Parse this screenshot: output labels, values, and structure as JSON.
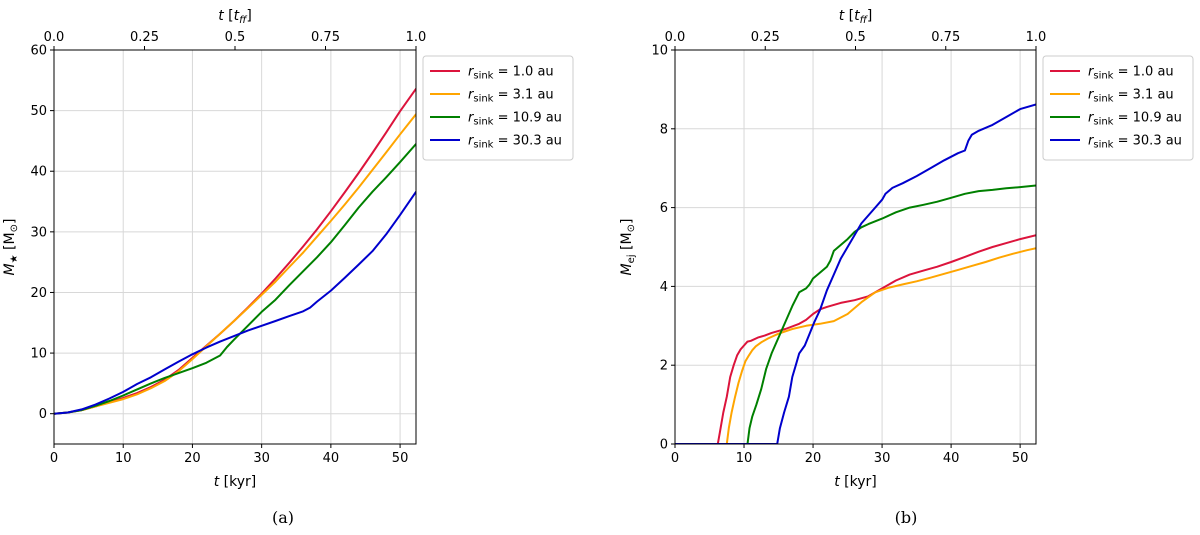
{
  "chart_data": [
    {
      "id": "a",
      "type": "line",
      "caption": "(a)",
      "xlabel": "t [kyr]",
      "ylabel": "M★ [M⊙]",
      "top_xlabel": "t [t_ff]",
      "xlim": [
        0,
        52.3
      ],
      "ylim": [
        -5,
        60
      ],
      "xticks": [
        0,
        10,
        20,
        30,
        40,
        50
      ],
      "yticks": [
        0,
        10,
        20,
        30,
        40,
        50,
        60
      ],
      "top_ticks": [
        0.0,
        0.25,
        0.5,
        0.75,
        1.0
      ],
      "top_tick_labels": [
        "0.0",
        "0.25",
        "0.5",
        "0.75",
        "1.0"
      ],
      "legend_position": "outside-right-top",
      "series": [
        {
          "name": "r_sink = 1.0 au",
          "label_prefix": "r",
          "label_sub": "sink",
          "label_value": " = 1.0 au",
          "color": "#dc143c",
          "x": [
            0,
            2,
            4,
            6,
            8,
            10,
            12,
            14,
            16,
            18,
            20,
            22,
            24,
            26,
            28,
            30,
            32,
            34,
            36,
            38,
            40,
            42,
            44,
            46,
            48,
            50,
            52.3
          ],
          "y": [
            0,
            0.2,
            0.6,
            1.2,
            1.9,
            2.6,
            3.4,
            4.4,
            5.6,
            7.2,
            9.2,
            11.2,
            13.2,
            15.3,
            17.5,
            19.8,
            22.3,
            24.9,
            27.6,
            30.4,
            33.4,
            36.5,
            39.7,
            43.0,
            46.4,
            49.9,
            53.6
          ]
        },
        {
          "name": "r_sink = 3.1 au",
          "label_prefix": "r",
          "label_sub": "sink",
          "label_value": " = 3.1 au",
          "color": "#ffa500",
          "x": [
            0,
            2,
            4,
            6,
            8,
            10,
            12,
            14,
            16,
            18,
            20,
            22,
            24,
            26,
            28,
            30,
            32,
            34,
            36,
            38,
            40,
            42,
            44,
            46,
            48,
            50,
            52.3
          ],
          "y": [
            0,
            0.2,
            0.6,
            1.2,
            1.8,
            2.4,
            3.2,
            4.2,
            5.4,
            7.0,
            9.0,
            11.1,
            13.2,
            15.3,
            17.4,
            19.6,
            21.8,
            24.2,
            26.6,
            29.2,
            31.8,
            34.5,
            37.3,
            40.2,
            43.1,
            46.1,
            49.4
          ]
        },
        {
          "name": "r_sink = 10.9 au",
          "label_prefix": "r",
          "label_sub": "sink",
          "label_value": " = 10.9 au",
          "color": "#008000",
          "x": [
            0,
            2,
            4,
            6,
            8,
            10,
            12,
            14,
            16,
            18,
            20,
            22,
            24,
            25,
            26,
            28,
            30,
            32,
            34,
            36,
            38,
            40,
            42,
            44,
            46,
            48,
            50,
            52.3
          ],
          "y": [
            0,
            0.2,
            0.6,
            1.3,
            2.1,
            3.0,
            4.0,
            5.0,
            5.9,
            6.7,
            7.5,
            8.4,
            9.6,
            11.0,
            12.2,
            14.5,
            16.8,
            18.8,
            21.2,
            23.5,
            25.8,
            28.3,
            31.1,
            34.0,
            36.6,
            39.0,
            41.5,
            44.5
          ]
        },
        {
          "name": "r_sink = 30.3 au",
          "label_prefix": "r",
          "label_sub": "sink",
          "label_value": " = 30.3 au",
          "color": "#0000cd",
          "x": [
            0,
            2,
            4,
            6,
            8,
            10,
            12,
            14,
            16,
            18,
            20,
            22,
            24,
            26,
            28,
            30,
            32,
            34,
            36,
            37,
            38,
            40,
            42,
            44,
            46,
            48,
            50,
            52.3
          ],
          "y": [
            0,
            0.2,
            0.7,
            1.5,
            2.5,
            3.6,
            4.9,
            6.0,
            7.3,
            8.6,
            9.8,
            10.9,
            11.9,
            12.8,
            13.7,
            14.5,
            15.3,
            16.1,
            16.9,
            17.5,
            18.5,
            20.3,
            22.4,
            24.6,
            26.8,
            29.6,
            32.8,
            36.6
          ]
        }
      ]
    },
    {
      "id": "b",
      "type": "line",
      "caption": "(b)",
      "xlabel": "t [kyr]",
      "ylabel": "M_ej [M⊙]",
      "top_xlabel": "t [t_ff]",
      "xlim": [
        0,
        52.3
      ],
      "ylim": [
        0,
        10
      ],
      "xticks": [
        0,
        10,
        20,
        30,
        40,
        50
      ],
      "yticks": [
        0,
        2,
        4,
        6,
        8,
        10
      ],
      "top_ticks": [
        0.0,
        0.25,
        0.5,
        0.75,
        1.0
      ],
      "top_tick_labels": [
        "0.0",
        "0.25",
        "0.5",
        "0.75",
        "1.0"
      ],
      "legend_position": "outside-right-top",
      "series": [
        {
          "name": "r_sink = 1.0 au",
          "label_prefix": "r",
          "label_sub": "sink",
          "label_value": " = 1.0 au",
          "color": "#dc143c",
          "x": [
            0,
            6.2,
            6.5,
            7.0,
            7.5,
            8.0,
            8.5,
            9.0,
            9.5,
            10.0,
            10.5,
            11.0,
            12,
            13,
            14,
            16,
            18,
            19,
            20,
            21,
            22,
            24,
            26,
            28,
            30,
            32,
            34,
            36,
            38,
            40,
            42,
            44,
            46,
            48,
            50,
            52.3
          ],
          "y": [
            0,
            0,
            0.3,
            0.8,
            1.2,
            1.7,
            2.0,
            2.25,
            2.4,
            2.5,
            2.6,
            2.62,
            2.7,
            2.75,
            2.82,
            2.92,
            3.05,
            3.15,
            3.3,
            3.42,
            3.48,
            3.58,
            3.65,
            3.75,
            3.95,
            4.15,
            4.3,
            4.4,
            4.5,
            4.62,
            4.75,
            4.88,
            5.0,
            5.1,
            5.2,
            5.3
          ]
        },
        {
          "name": "r_sink = 3.1 au",
          "label_prefix": "r",
          "label_sub": "sink",
          "label_value": " = 3.1 au",
          "color": "#ffa500",
          "x": [
            0,
            7.5,
            7.8,
            8.2,
            8.7,
            9.2,
            9.7,
            10.2,
            10.7,
            11.2,
            11.7,
            12.5,
            13.5,
            15,
            17,
            19,
            21,
            23,
            25,
            27,
            29,
            31,
            33,
            35,
            37,
            39,
            41,
            43,
            45,
            47,
            49,
            51,
            52.3
          ],
          "y": [
            0,
            0,
            0.4,
            0.8,
            1.2,
            1.55,
            1.85,
            2.1,
            2.25,
            2.38,
            2.48,
            2.58,
            2.68,
            2.8,
            2.92,
            3.0,
            3.05,
            3.12,
            3.3,
            3.6,
            3.85,
            3.97,
            4.05,
            4.13,
            4.22,
            4.32,
            4.42,
            4.52,
            4.62,
            4.73,
            4.83,
            4.92,
            4.97
          ]
        },
        {
          "name": "r_sink = 10.9 au",
          "label_prefix": "r",
          "label_sub": "sink",
          "label_value": " = 10.9 au",
          "color": "#008000",
          "x": [
            0,
            10.5,
            10.8,
            11.2,
            11.8,
            12.5,
            13.2,
            14.0,
            15.0,
            16.0,
            17.0,
            18.0,
            19.0,
            19.5,
            20,
            21,
            22,
            22.5,
            23,
            24,
            25,
            26,
            27,
            28,
            30,
            32,
            34,
            36,
            38,
            40,
            42,
            44,
            46,
            48,
            50,
            52.3
          ],
          "y": [
            0,
            0,
            0.4,
            0.7,
            1.0,
            1.4,
            1.9,
            2.3,
            2.7,
            3.1,
            3.5,
            3.85,
            3.95,
            4.05,
            4.2,
            4.35,
            4.5,
            4.65,
            4.9,
            5.05,
            5.2,
            5.38,
            5.5,
            5.58,
            5.72,
            5.88,
            6.0,
            6.07,
            6.15,
            6.25,
            6.35,
            6.42,
            6.45,
            6.49,
            6.52,
            6.56
          ]
        },
        {
          "name": "r_sink = 30.3 au",
          "label_prefix": "r",
          "label_sub": "sink",
          "label_value": " = 30.3 au",
          "color": "#0000cd",
          "x": [
            0,
            14.8,
            15.2,
            15.8,
            16.5,
            17.0,
            17.5,
            18.0,
            18.8,
            19.5,
            20.2,
            21.0,
            22.0,
            23.0,
            24.0,
            25.0,
            26.0,
            27.0,
            28.0,
            29.0,
            30.0,
            30.5,
            31.5,
            33,
            35,
            37,
            39,
            41,
            42,
            42.5,
            43,
            44,
            46,
            48,
            50,
            52.3
          ],
          "y": [
            0,
            0,
            0.4,
            0.8,
            1.2,
            1.7,
            2.0,
            2.3,
            2.5,
            2.8,
            3.1,
            3.4,
            3.9,
            4.3,
            4.7,
            5.0,
            5.3,
            5.6,
            5.8,
            6.0,
            6.2,
            6.35,
            6.5,
            6.62,
            6.8,
            7.0,
            7.2,
            7.38,
            7.45,
            7.7,
            7.85,
            7.95,
            8.1,
            8.3,
            8.5,
            8.62
          ]
        }
      ]
    }
  ]
}
